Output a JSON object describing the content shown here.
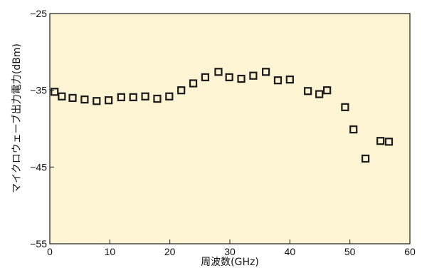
{
  "chart_data": {
    "type": "scatter",
    "title": "",
    "xlabel": "周波数(GHz)",
    "ylabel": "マイクロウェーブ出力電力(dBm)",
    "xlim": [
      0,
      60
    ],
    "ylim": [
      -55,
      -25
    ],
    "xticks": [
      0,
      10,
      20,
      30,
      40,
      50,
      60
    ],
    "xtick_labels": [
      "0",
      "10",
      "20",
      "30",
      "40",
      "50",
      "60"
    ],
    "yticks": [
      -25,
      -35,
      -45,
      -55
    ],
    "ytick_labels": [
      "−25",
      "−35",
      "−45",
      "−55"
    ],
    "grid": false,
    "marker": "hollow-square",
    "colors": {
      "plot_background": "#fdf4d3",
      "marker": "#1a1a1a",
      "axis": "#1a1a1a"
    },
    "x": [
      0.8,
      2.0,
      3.8,
      5.8,
      7.8,
      9.8,
      11.9,
      13.9,
      15.9,
      17.9,
      19.9,
      21.9,
      23.9,
      25.9,
      28.1,
      29.9,
      31.9,
      33.9,
      36.0,
      38.0,
      40.0,
      43.0,
      44.9,
      46.2,
      49.2,
      50.6,
      52.6,
      55.1,
      56.5
    ],
    "y": [
      -35.2,
      -35.8,
      -36.0,
      -36.2,
      -36.4,
      -36.3,
      -35.9,
      -35.9,
      -35.8,
      -36.1,
      -35.8,
      -35.0,
      -34.1,
      -33.3,
      -32.6,
      -33.3,
      -33.5,
      -33.1,
      -32.6,
      -33.7,
      -33.6,
      -35.1,
      -35.5,
      -35.0,
      -37.2,
      -40.1,
      -43.9,
      -41.6,
      -41.7
    ]
  }
}
